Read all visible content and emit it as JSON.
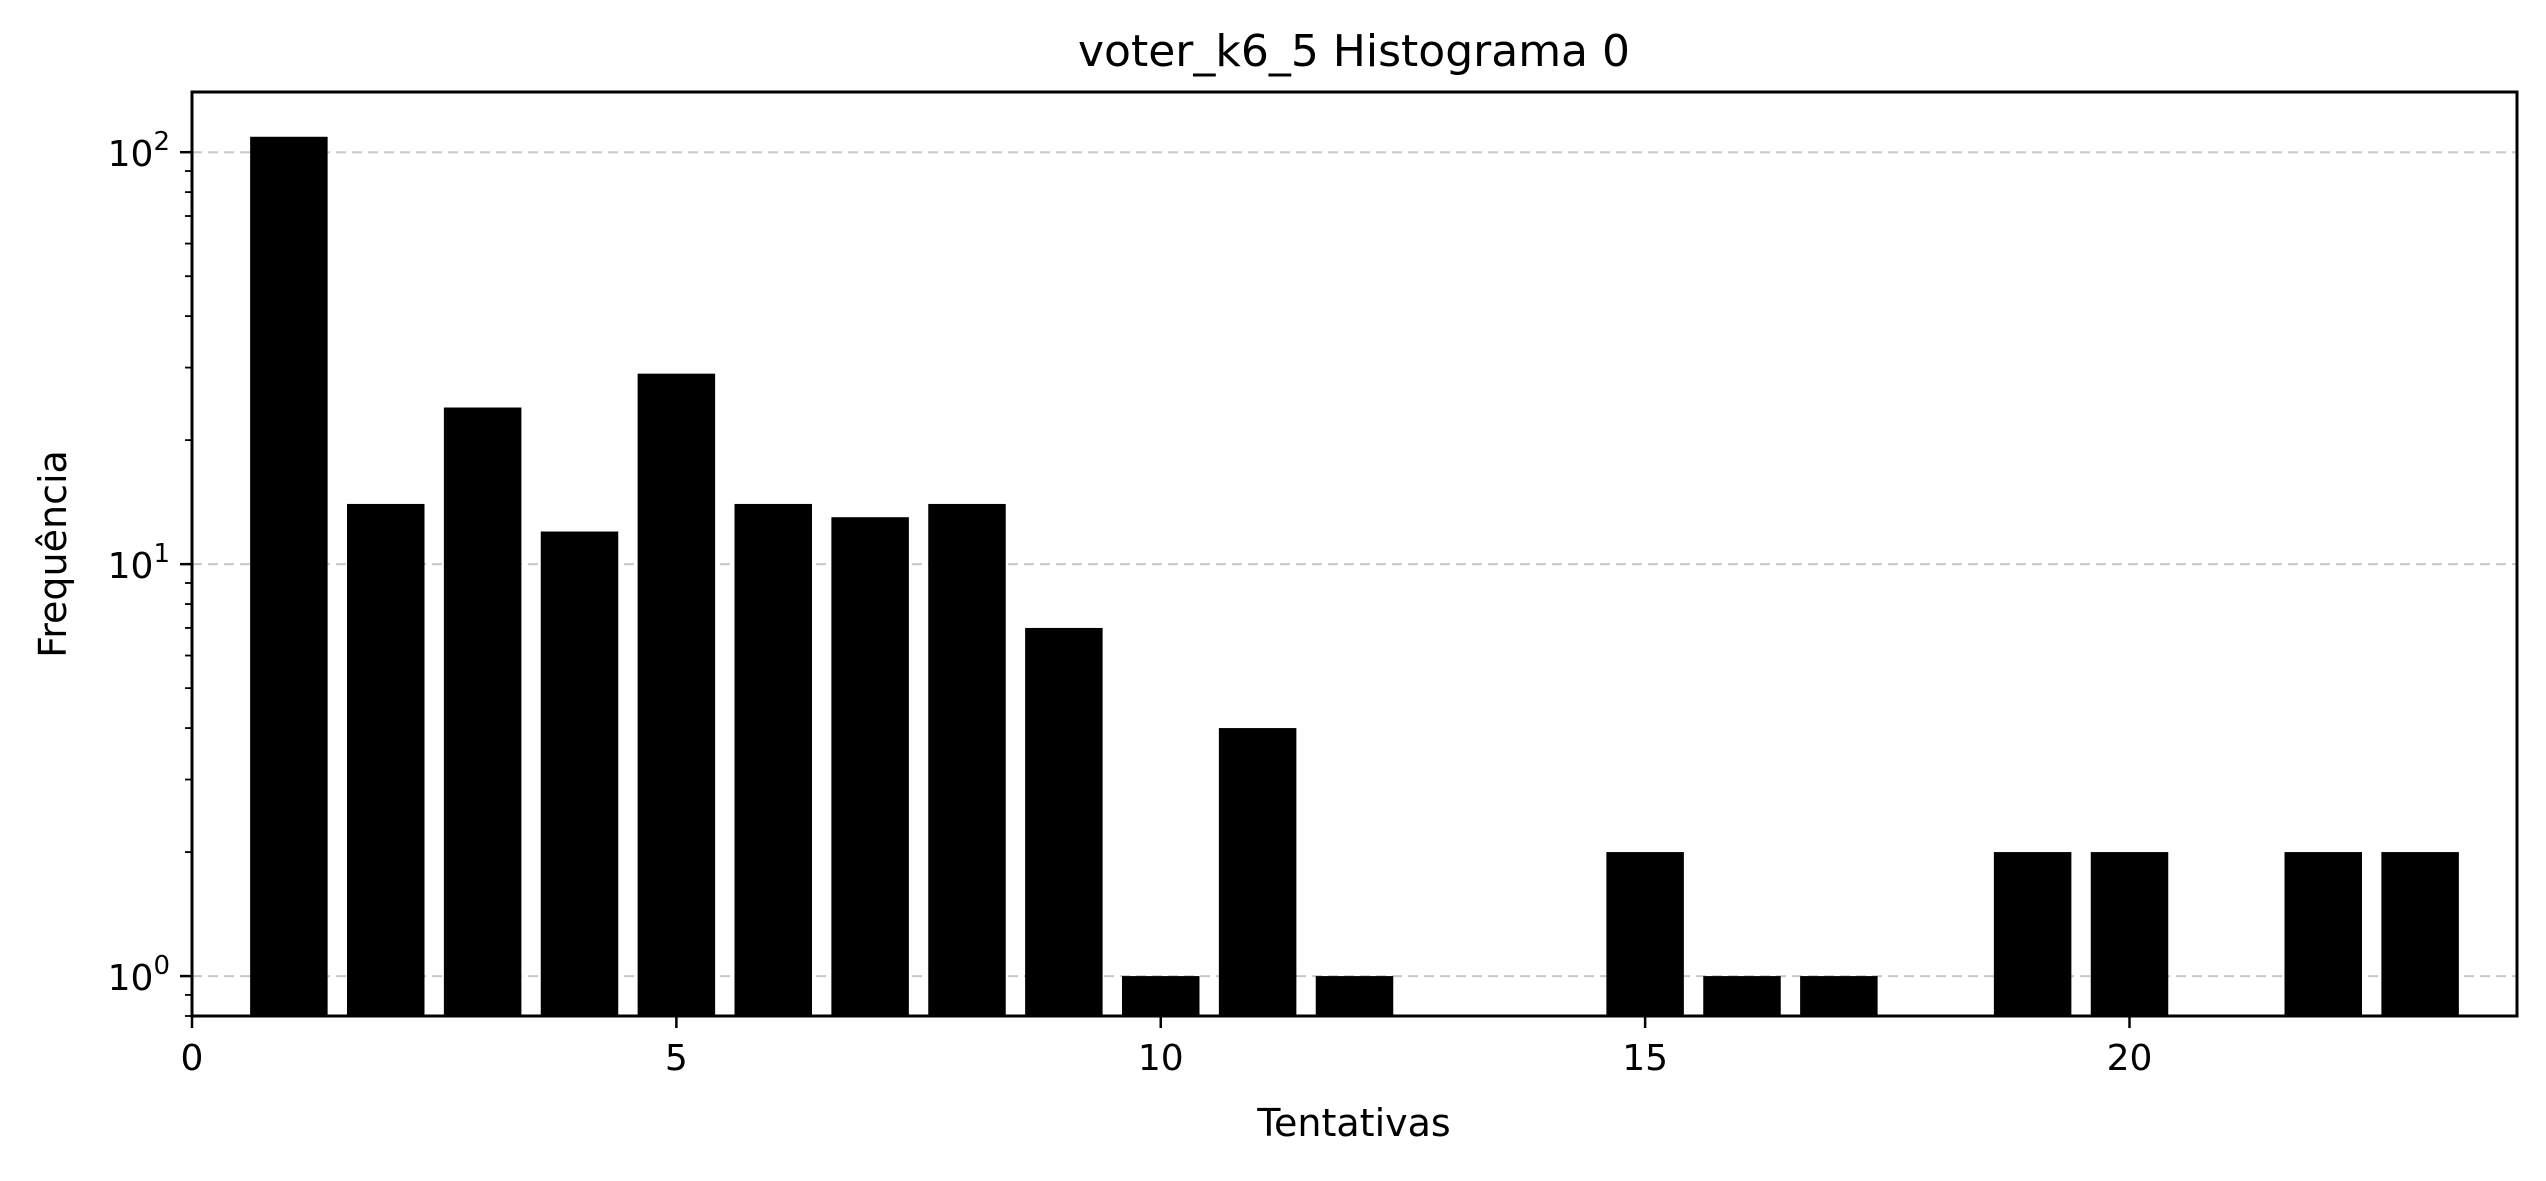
{
  "chart_data": {
    "type": "bar",
    "title": "voter_k6_5 Histograma 0",
    "xlabel": "Tentativas",
    "ylabel": "Frequência",
    "yscale": "log",
    "xlim": [
      0,
      24
    ],
    "ylim": [
      0.8,
      140
    ],
    "grid": "y-major-dashed",
    "bar_color": "#000000",
    "bar_width": 0.8,
    "x": [
      1,
      2,
      3,
      4,
      5,
      6,
      7,
      8,
      9,
      10,
      11,
      12,
      15,
      16,
      17,
      19,
      20,
      22,
      23
    ],
    "values": [
      109,
      14,
      24,
      12,
      29,
      14,
      13,
      14,
      7,
      1,
      4,
      1,
      2,
      1,
      1,
      2,
      2,
      2,
      2
    ],
    "x_ticks": [
      0,
      5,
      10,
      15,
      20
    ],
    "x_tick_labels": [
      "0",
      "5",
      "10",
      "15",
      "20"
    ],
    "y_ticks": [
      1,
      10,
      100
    ],
    "y_tick_labels": [
      {
        "base": "10",
        "exp": "0"
      },
      {
        "base": "10",
        "exp": "1"
      },
      {
        "base": "10",
        "exp": "2"
      }
    ]
  }
}
